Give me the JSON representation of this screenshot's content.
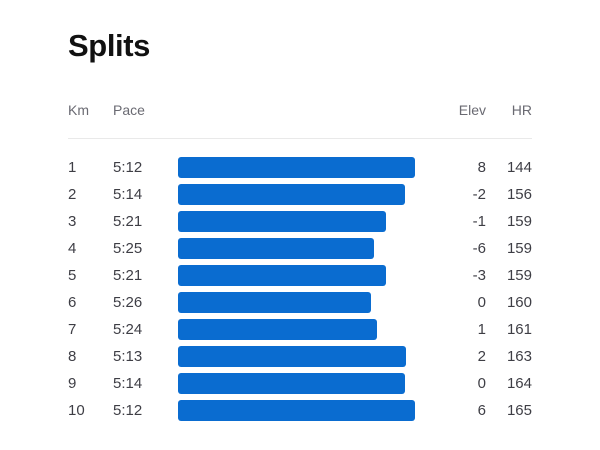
{
  "page": {
    "title": "Splits"
  },
  "table": {
    "headers": {
      "km": "Km",
      "pace": "Pace",
      "elev": "Elev",
      "hr": "HR"
    },
    "rows": [
      {
        "km": "1",
        "pace": "5:12",
        "elev": "8",
        "hr": "144",
        "bar_pct": 100
      },
      {
        "km": "2",
        "pace": "5:14",
        "elev": "-2",
        "hr": "156",
        "bar_pct": 95.8
      },
      {
        "km": "3",
        "pace": "5:21",
        "elev": "-1",
        "hr": "159",
        "bar_pct": 87.8
      },
      {
        "km": "4",
        "pace": "5:25",
        "elev": "-6",
        "hr": "159",
        "bar_pct": 82.8
      },
      {
        "km": "5",
        "pace": "5:21",
        "elev": "-3",
        "hr": "159",
        "bar_pct": 87.8
      },
      {
        "km": "6",
        "pace": "5:26",
        "elev": "0",
        "hr": "160",
        "bar_pct": 81.4
      },
      {
        "km": "7",
        "pace": "5:24",
        "elev": "1",
        "hr": "161",
        "bar_pct": 84.0
      },
      {
        "km": "8",
        "pace": "5:13",
        "elev": "2",
        "hr": "163",
        "bar_pct": 96.2
      },
      {
        "km": "9",
        "pace": "5:14",
        "elev": "0",
        "hr": "164",
        "bar_pct": 95.8
      },
      {
        "km": "10",
        "pace": "5:12",
        "elev": "6",
        "hr": "165",
        "bar_pct": 100
      }
    ]
  },
  "colors": {
    "bar": "#0a6cd0",
    "title_text": "#111111",
    "header_text": "#6a6a72",
    "row_text": "#3e3e45",
    "divider": "#e9e9e9",
    "background": "#ffffff"
  },
  "chart_data": {
    "type": "bar",
    "orientation": "horizontal",
    "title": "Splits",
    "categories": [
      "1",
      "2",
      "3",
      "4",
      "5",
      "6",
      "7",
      "8",
      "9",
      "10"
    ],
    "category_axis_label": "Km",
    "series": [
      {
        "name": "Pace",
        "values": [
          "5:12",
          "5:14",
          "5:21",
          "5:25",
          "5:21",
          "5:26",
          "5:24",
          "5:13",
          "5:14",
          "5:12"
        ],
        "values_seconds": [
          312,
          314,
          321,
          325,
          321,
          326,
          324,
          313,
          314,
          312
        ]
      },
      {
        "name": "Elev",
        "values": [
          8,
          -2,
          -1,
          -6,
          -3,
          0,
          1,
          2,
          0,
          6
        ]
      },
      {
        "name": "HR",
        "values": [
          144,
          156,
          159,
          159,
          159,
          160,
          161,
          163,
          164,
          165
        ]
      }
    ],
    "bar_lengths_pct_of_max": [
      100,
      95.8,
      87.8,
      82.8,
      87.8,
      81.4,
      84.0,
      96.2,
      95.8,
      100
    ],
    "bar_color": "#0a6cd0",
    "legend": false,
    "grid": false
  }
}
